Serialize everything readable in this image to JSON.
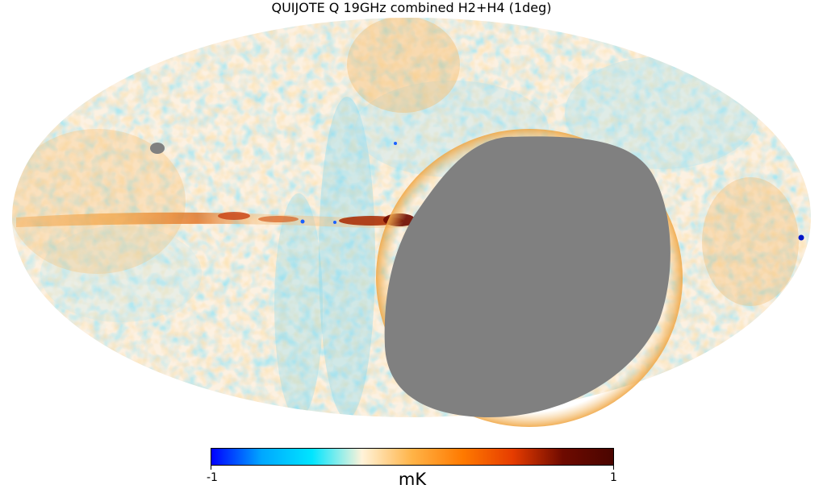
{
  "figure": {
    "title": "QUIJOTE Q 19GHz combined H2+H4 (1deg)",
    "projection": "mollweide",
    "masked_region_color": "#808080"
  },
  "colorbar": {
    "min_label": "-1",
    "max_label": "1",
    "unit": "mK",
    "colormap": "planck",
    "stops": [
      "#0000ff",
      "#00a7ff",
      "#00e5ff",
      "#fff3d9",
      "#ffb347",
      "#ff7a00",
      "#e63c00",
      "#6e0a00",
      "#4a0500"
    ]
  }
}
